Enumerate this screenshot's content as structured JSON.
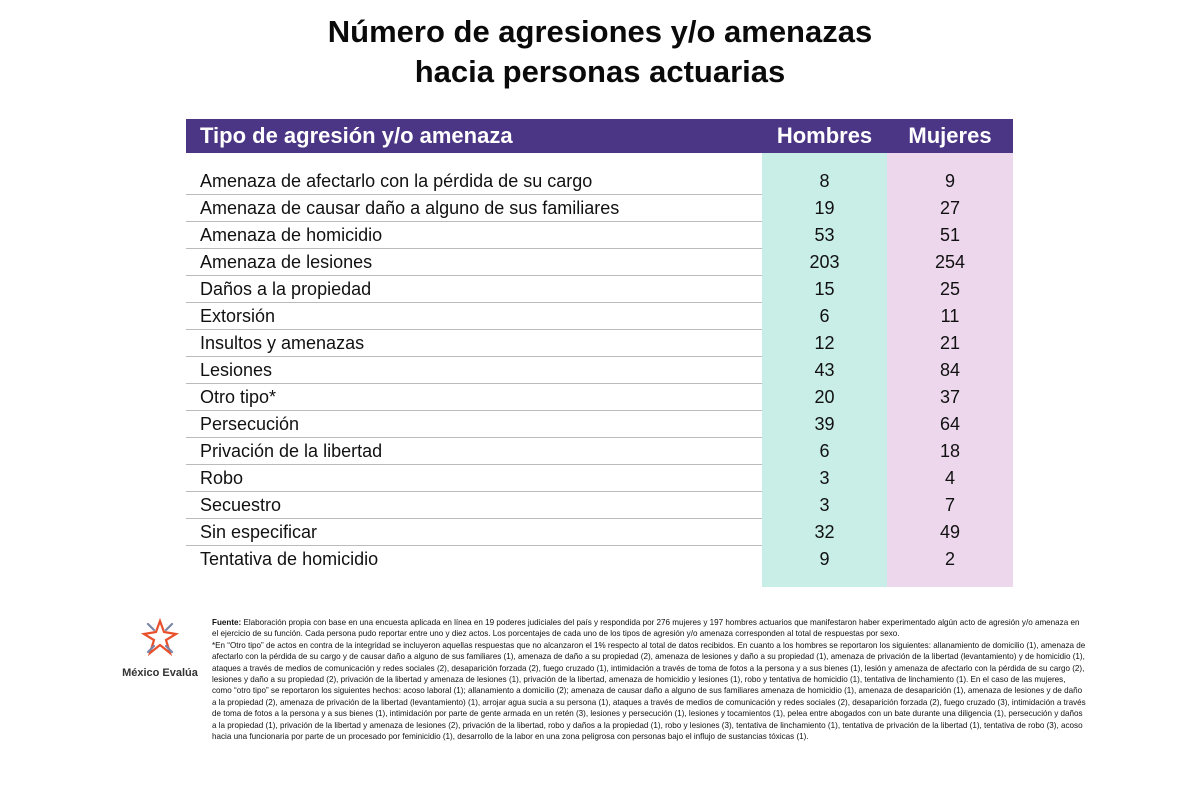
{
  "title_line1": "Número de agresiones y/o amenazas",
  "title_line2": "hacia personas actuarias",
  "colors": {
    "header": "#4b3585",
    "hombres_bg": "#c9ede7",
    "mujeres_bg": "#ecd7ec"
  },
  "chart_data": {
    "type": "table",
    "columns": [
      "Tipo de agresión y/o amenaza",
      "Hombres",
      "Mujeres"
    ],
    "rows": [
      {
        "tipo": "Amenaza de afectarlo con la pérdida de su cargo",
        "hombres": 8,
        "mujeres": 9
      },
      {
        "tipo": "Amenaza de causar daño a alguno de sus familiares",
        "hombres": 19,
        "mujeres": 27
      },
      {
        "tipo": "Amenaza de homicidio",
        "hombres": 53,
        "mujeres": 51
      },
      {
        "tipo": "Amenaza de lesiones",
        "hombres": 203,
        "mujeres": 254
      },
      {
        "tipo": "Daños a la propiedad",
        "hombres": 15,
        "mujeres": 25
      },
      {
        "tipo": "Extorsión",
        "hombres": 6,
        "mujeres": 11
      },
      {
        "tipo": "Insultos y amenazas",
        "hombres": 12,
        "mujeres": 21
      },
      {
        "tipo": "Lesiones",
        "hombres": 43,
        "mujeres": 84
      },
      {
        "tipo": "Otro tipo*",
        "hombres": 20,
        "mujeres": 37
      },
      {
        "tipo": "Persecución",
        "hombres": 39,
        "mujeres": 64
      },
      {
        "tipo": "Privación de la libertad",
        "hombres": 6,
        "mujeres": 18
      },
      {
        "tipo": "Robo",
        "hombres": 3,
        "mujeres": 4
      },
      {
        "tipo": "Secuestro",
        "hombres": 3,
        "mujeres": 7
      },
      {
        "tipo": "Sin especificar",
        "hombres": 32,
        "mujeres": 49
      },
      {
        "tipo": "Tentativa de homicidio",
        "hombres": 9,
        "mujeres": 2
      }
    ]
  },
  "logo": {
    "name": "México Evalúa"
  },
  "footnote": {
    "source_label": "Fuente:",
    "source_text": " Elaboración propia con base en una encuesta aplicada en línea en 19 poderes judiciales del país y respondida por 276 mujeres y 197 hombres actuarios que manifestaron haber experimentado algún acto de agresión y/o amenaza en el ejercicio de su función. Cada persona pudo reportar entre uno y diez actos. Los porcentajes de cada uno de los tipos de agresión y/o amenaza corresponden al total de respuestas por sexo.",
    "note": "*En “Otro tipo” de actos en contra de la integridad se incluyeron aquellas respuestas que no alcanzaron el 1% respecto al total de datos recibidos. En cuanto a los hombres se reportaron los siguientes: allanamiento de domicilio (1), amenaza de afectarlo con la pérdida de su cargo y de causar daño a alguno de sus familiares (1), amenaza de daño a su propiedad (2), amenaza de lesiones y daño a su propiedad (1), amenaza de privación de la libertad (levantamiento) y de homicidio (1), ataques a través de medios de comunicación y redes sociales (2), desaparición forzada (2), fuego cruzado (1), intimidación a través de toma de fotos a la persona y a sus bienes (1), lesión y amenaza de afectarlo con la pérdida de su cargo (2), lesiones y daño a su propiedad (2),  privación de la libertad y amenaza de lesiones (1), privación de la libertad, amenaza de homicidio y lesiones (1), robo y tentativa de homicidio (1), tentativa de linchamiento (1). En el caso de las mujeres, como “otro tipo” se reportaron los siguientes hechos: acoso laboral (1); allanamiento a domicilio (2); amenaza de causar daño a alguno de sus familiares amenaza de homicidio (1), amenaza de desaparición (1), amenaza de lesiones y de daño a la propiedad (2), amenaza de privación de la libertad (levantamiento) (1), arrojar agua sucia a su persona (1), ataques a través de medios de comunicación y redes sociales (2), desaparición forzada (2), fuego cruzado (3), intimidación a través de toma de fotos a la persona y a sus bienes (1), intimidación por parte de gente armada en un retén (3), lesiones y persecución (1), lesiones y tocamientos (1), pelea entre abogados con un bate durante una diligencia (1), persecución y daños a la propiedad (1), privación de la libertad y amenaza de lesiones (2), privación de la libertad, robo y daños a la propiedad (1), robo y lesiones (3), tentativa de linchamiento (1), tentativa de privación de la libertad (1), tentativa de robo (3), acoso hacia una funcionaria por parte de un procesado por feminicidio (1), desarrollo de la labor en una zona peligrosa con personas bajo el influjo de sustancias tóxicas (1)."
  }
}
